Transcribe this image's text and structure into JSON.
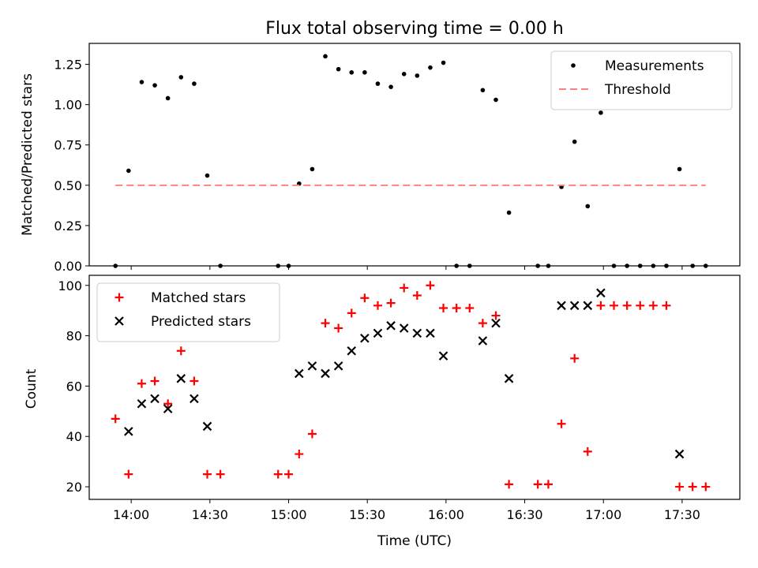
{
  "chart_data": [
    {
      "type": "scatter",
      "title": "Flux total observing time = 0.00 h",
      "ylabel": "Matched/Predicted stars",
      "xlabel": "",
      "ylim": [
        0,
        1.38
      ],
      "yticks": [
        0,
        0.25,
        0.5,
        0.75,
        1.0,
        1.25
      ],
      "ytick_labels": [
        "0.00",
        "0.25",
        "0.50",
        "0.75",
        "1.00",
        "1.25"
      ],
      "legend": {
        "position": "top-right",
        "entries": [
          {
            "label": "Measurements",
            "marker": "dot",
            "color": "#000000"
          },
          {
            "label": "Threshold",
            "marker": "dashed-line",
            "color": "#ff8080"
          }
        ]
      },
      "series": [
        {
          "name": "Measurements",
          "marker": "dot",
          "color": "#000000",
          "points": [
            [
              "13:54",
              0.0
            ],
            [
              "13:59",
              0.59
            ],
            [
              "14:04",
              1.14
            ],
            [
              "14:09",
              1.12
            ],
            [
              "14:14",
              1.04
            ],
            [
              "14:19",
              1.17
            ],
            [
              "14:24",
              1.13
            ],
            [
              "14:29",
              0.56
            ],
            [
              "14:34",
              0.0
            ],
            [
              "14:56",
              0.0
            ],
            [
              "15:00",
              0.0
            ],
            [
              "15:04",
              0.51
            ],
            [
              "15:09",
              0.6
            ],
            [
              "15:14",
              1.3
            ],
            [
              "15:19",
              1.22
            ],
            [
              "15:24",
              1.2
            ],
            [
              "15:29",
              1.2
            ],
            [
              "15:34",
              1.13
            ],
            [
              "15:39",
              1.11
            ],
            [
              "15:44",
              1.19
            ],
            [
              "15:49",
              1.18
            ],
            [
              "15:54",
              1.23
            ],
            [
              "15:59",
              1.26
            ],
            [
              "16:04",
              0.0
            ],
            [
              "16:09",
              0.0
            ],
            [
              "16:14",
              1.09
            ],
            [
              "16:19",
              1.03
            ],
            [
              "16:24",
              0.33
            ],
            [
              "16:35",
              0.0
            ],
            [
              "16:39",
              0.0
            ],
            [
              "16:44",
              0.49
            ],
            [
              "16:49",
              0.77
            ],
            [
              "16:54",
              0.37
            ],
            [
              "16:59",
              0.95
            ],
            [
              "17:04",
              0.0
            ],
            [
              "17:09",
              0.0
            ],
            [
              "17:14",
              0.0
            ],
            [
              "17:19",
              0.0
            ],
            [
              "17:24",
              0.0
            ],
            [
              "17:29",
              0.6
            ],
            [
              "17:34",
              0.0
            ],
            [
              "17:39",
              0.0
            ]
          ]
        },
        {
          "name": "Threshold",
          "marker": "dashed-line",
          "color": "#ff8080",
          "points": [
            [
              "13:54",
              0.5
            ],
            [
              "17:39",
              0.5
            ]
          ]
        }
      ]
    },
    {
      "type": "scatter",
      "title": "",
      "xlabel": "Time (UTC)",
      "ylabel": "Count",
      "ylim": [
        15,
        104
      ],
      "yticks": [
        20,
        40,
        60,
        80,
        100
      ],
      "ytick_labels": [
        "20",
        "40",
        "60",
        "80",
        "100"
      ],
      "xlim": [
        "13:44",
        "17:52"
      ],
      "xticks": [
        "14:00",
        "14:30",
        "15:00",
        "15:30",
        "16:00",
        "16:30",
        "17:00",
        "17:30"
      ],
      "legend": {
        "position": "top-left",
        "entries": [
          {
            "label": "Matched stars",
            "marker": "plus",
            "color": "#ff0000"
          },
          {
            "label": "Predicted stars",
            "marker": "x",
            "color": "#000000"
          }
        ]
      },
      "series": [
        {
          "name": "Matched stars",
          "marker": "plus",
          "color": "#ff0000",
          "points": [
            [
              "13:54",
              47
            ],
            [
              "13:59",
              25
            ],
            [
              "14:04",
              61
            ],
            [
              "14:09",
              62
            ],
            [
              "14:14",
              53
            ],
            [
              "14:19",
              74
            ],
            [
              "14:24",
              62
            ],
            [
              "14:29",
              25
            ],
            [
              "14:34",
              25
            ],
            [
              "14:56",
              25
            ],
            [
              "15:00",
              25
            ],
            [
              "15:04",
              33
            ],
            [
              "15:09",
              41
            ],
            [
              "15:14",
              85
            ],
            [
              "15:19",
              83
            ],
            [
              "15:24",
              89
            ],
            [
              "15:29",
              95
            ],
            [
              "15:34",
              92
            ],
            [
              "15:39",
              93
            ],
            [
              "15:44",
              99
            ],
            [
              "15:49",
              96
            ],
            [
              "15:54",
              100
            ],
            [
              "15:59",
              91
            ],
            [
              "16:04",
              91
            ],
            [
              "16:09",
              91
            ],
            [
              "16:14",
              85
            ],
            [
              "16:19",
              88
            ],
            [
              "16:24",
              21
            ],
            [
              "16:35",
              21
            ],
            [
              "16:39",
              21
            ],
            [
              "16:44",
              45
            ],
            [
              "16:49",
              71
            ],
            [
              "16:54",
              34
            ],
            [
              "16:59",
              92
            ],
            [
              "17:04",
              92
            ],
            [
              "17:09",
              92
            ],
            [
              "17:14",
              92
            ],
            [
              "17:19",
              92
            ],
            [
              "17:24",
              92
            ],
            [
              "17:29",
              20
            ],
            [
              "17:34",
              20
            ],
            [
              "17:39",
              20
            ]
          ]
        },
        {
          "name": "Predicted stars",
          "marker": "x",
          "color": "#000000",
          "points": [
            [
              "13:59",
              42
            ],
            [
              "14:04",
              53
            ],
            [
              "14:09",
              55
            ],
            [
              "14:14",
              51
            ],
            [
              "14:19",
              63
            ],
            [
              "14:24",
              55
            ],
            [
              "14:29",
              44
            ],
            [
              "15:04",
              65
            ],
            [
              "15:09",
              68
            ],
            [
              "15:14",
              65
            ],
            [
              "15:19",
              68
            ],
            [
              "15:24",
              74
            ],
            [
              "15:29",
              79
            ],
            [
              "15:34",
              81
            ],
            [
              "15:39",
              84
            ],
            [
              "15:44",
              83
            ],
            [
              "15:49",
              81
            ],
            [
              "15:54",
              81
            ],
            [
              "15:59",
              72
            ],
            [
              "16:14",
              78
            ],
            [
              "16:19",
              85
            ],
            [
              "16:24",
              63
            ],
            [
              "16:44",
              92
            ],
            [
              "16:49",
              92
            ],
            [
              "16:54",
              92
            ],
            [
              "16:59",
              97
            ],
            [
              "17:29",
              33
            ]
          ]
        }
      ]
    }
  ]
}
